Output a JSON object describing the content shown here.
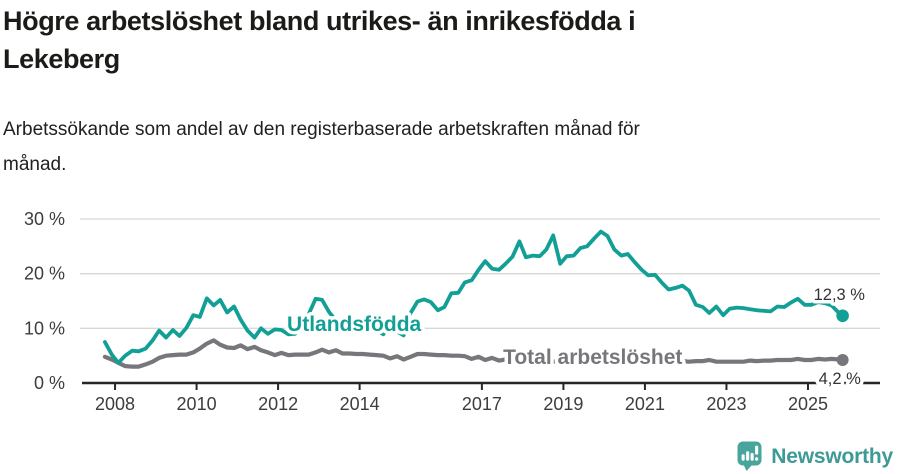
{
  "header": {
    "title_line1": "Högre arbetslöshet bland utrikes- än inrikesfödda i",
    "title_line2": "Lekeberg",
    "subtitle_line1": "Arbetssökande som andel av den registerbaserade arbetskraften månad för",
    "subtitle_line2": "månad."
  },
  "footer": {
    "brand": "Newsworthy",
    "logo_icon": "bar-chart-speech-bubble-icon"
  },
  "colors": {
    "foreign_born": "#12a096",
    "total": "#77777b",
    "axis": "#262626",
    "gridline": "#d8d8d8",
    "tick_label": "#3d3d3d",
    "value_label": "#333333",
    "logo_teal": "#4aa49e"
  },
  "chart_data": {
    "type": "line",
    "title": "Högre arbetslöshet bland utrikes- än inrikesfödda i Lekeberg",
    "subtitle": "Arbetssökande som andel av den registerbaserade arbetskraften månad för månad.",
    "unit": "percent of registered labour force",
    "grid": "horizontal-only",
    "legend_position": "inline-on-line",
    "xlim": [
      2007.14,
      2026.77
    ],
    "ylim": [
      0,
      32
    ],
    "x_tick_values": [
      2008,
      2010,
      2012,
      2014,
      2017,
      2019,
      2021,
      2023,
      2025
    ],
    "x_tick_labels": [
      "2008",
      "2010",
      "2012",
      "2014",
      "2017",
      "2019",
      "2021",
      "2023",
      "2025"
    ],
    "y_tick_values": [
      0,
      10,
      20,
      30
    ],
    "y_tick_labels": [
      "0 %",
      "10 %",
      "20 %",
      "30 %"
    ],
    "series": [
      {
        "name": "Utlandsfödda",
        "color": "#12a096",
        "line_width": 3.8,
        "end_value": 12.3,
        "end_label": "12,3 %",
        "label_anchor": {
          "x": 2012.22,
          "y": 9.5
        },
        "points": [
          [
            2007.75,
            7.5
          ],
          [
            2007.92,
            5.2
          ],
          [
            2008.08,
            3.7
          ],
          [
            2008.25,
            5.0
          ],
          [
            2008.42,
            5.9
          ],
          [
            2008.58,
            5.8
          ],
          [
            2008.75,
            6.3
          ],
          [
            2008.92,
            7.8
          ],
          [
            2009.08,
            9.6
          ],
          [
            2009.25,
            8.3
          ],
          [
            2009.42,
            9.7
          ],
          [
            2009.58,
            8.6
          ],
          [
            2009.75,
            10.1
          ],
          [
            2009.92,
            12.4
          ],
          [
            2010.08,
            12.1
          ],
          [
            2010.25,
            15.5
          ],
          [
            2010.42,
            14.2
          ],
          [
            2010.58,
            15.2
          ],
          [
            2010.75,
            12.9
          ],
          [
            2010.92,
            14.0
          ],
          [
            2011.08,
            11.6
          ],
          [
            2011.25,
            9.6
          ],
          [
            2011.42,
            8.3
          ],
          [
            2011.58,
            10.0
          ],
          [
            2011.75,
            9.0
          ],
          [
            2011.92,
            9.8
          ],
          [
            2012.08,
            9.7
          ],
          [
            2012.25,
            8.9
          ],
          [
            2012.42,
            9.0
          ],
          [
            2012.58,
            10.4
          ],
          [
            2012.75,
            12.6
          ],
          [
            2012.92,
            15.4
          ],
          [
            2013.08,
            15.2
          ],
          [
            2013.25,
            13.0
          ],
          [
            2013.42,
            11.4
          ],
          [
            2013.58,
            11.5
          ],
          [
            2013.75,
            11.3
          ],
          [
            2013.92,
            11.2
          ],
          [
            2014.08,
            11.2
          ],
          [
            2014.25,
            10.0
          ],
          [
            2014.42,
            9.7
          ],
          [
            2014.58,
            8.9
          ],
          [
            2014.75,
            10.8
          ],
          [
            2014.92,
            9.4
          ],
          [
            2015.08,
            8.7
          ],
          [
            2015.25,
            12.8
          ],
          [
            2015.42,
            14.9
          ],
          [
            2015.58,
            15.3
          ],
          [
            2015.75,
            14.8
          ],
          [
            2015.92,
            13.3
          ],
          [
            2016.08,
            13.9
          ],
          [
            2016.25,
            16.4
          ],
          [
            2016.42,
            16.5
          ],
          [
            2016.58,
            18.4
          ],
          [
            2016.75,
            18.8
          ],
          [
            2016.92,
            20.7
          ],
          [
            2017.08,
            22.3
          ],
          [
            2017.25,
            20.9
          ],
          [
            2017.42,
            20.7
          ],
          [
            2017.58,
            21.8
          ],
          [
            2017.75,
            23.1
          ],
          [
            2017.92,
            25.9
          ],
          [
            2018.08,
            23.0
          ],
          [
            2018.25,
            23.3
          ],
          [
            2018.42,
            23.2
          ],
          [
            2018.58,
            24.4
          ],
          [
            2018.75,
            27.0
          ],
          [
            2018.92,
            21.8
          ],
          [
            2019.08,
            23.2
          ],
          [
            2019.25,
            23.3
          ],
          [
            2019.42,
            24.7
          ],
          [
            2019.58,
            25.0
          ],
          [
            2019.75,
            26.4
          ],
          [
            2019.92,
            27.7
          ],
          [
            2020.08,
            26.9
          ],
          [
            2020.25,
            24.4
          ],
          [
            2020.42,
            23.3
          ],
          [
            2020.58,
            23.6
          ],
          [
            2020.75,
            22.1
          ],
          [
            2020.92,
            20.7
          ],
          [
            2021.08,
            19.7
          ],
          [
            2021.25,
            19.8
          ],
          [
            2021.42,
            18.3
          ],
          [
            2021.58,
            17.1
          ],
          [
            2021.75,
            17.4
          ],
          [
            2021.92,
            17.8
          ],
          [
            2022.08,
            16.9
          ],
          [
            2022.25,
            14.3
          ],
          [
            2022.42,
            13.9
          ],
          [
            2022.58,
            12.8
          ],
          [
            2022.75,
            14.0
          ],
          [
            2022.92,
            12.4
          ],
          [
            2023.08,
            13.6
          ],
          [
            2023.25,
            13.8
          ],
          [
            2023.42,
            13.7
          ],
          [
            2023.58,
            13.5
          ],
          [
            2023.75,
            13.3
          ],
          [
            2023.92,
            13.2
          ],
          [
            2024.08,
            13.1
          ],
          [
            2024.25,
            14.0
          ],
          [
            2024.42,
            13.9
          ],
          [
            2024.58,
            14.7
          ],
          [
            2024.75,
            15.4
          ],
          [
            2024.92,
            14.3
          ],
          [
            2025.08,
            14.3
          ],
          [
            2025.25,
            14.8
          ],
          [
            2025.42,
            14.6
          ],
          [
            2025.58,
            14.2
          ],
          [
            2025.75,
            12.9
          ],
          [
            2025.85,
            12.3
          ]
        ]
      },
      {
        "name": "Total arbetslöshet",
        "color": "#77777b",
        "line_width": 4.2,
        "end_value": 4.2,
        "end_label": "4,2 %",
        "label_anchor": {
          "x": 2017.52,
          "y": 3.48
        },
        "points": [
          [
            2007.75,
            4.8
          ],
          [
            2007.92,
            4.3
          ],
          [
            2008.08,
            3.7
          ],
          [
            2008.25,
            3.1
          ],
          [
            2008.42,
            3.0
          ],
          [
            2008.58,
            3.0
          ],
          [
            2008.75,
            3.4
          ],
          [
            2008.92,
            3.9
          ],
          [
            2009.08,
            4.6
          ],
          [
            2009.25,
            5.0
          ],
          [
            2009.42,
            5.1
          ],
          [
            2009.58,
            5.2
          ],
          [
            2009.75,
            5.2
          ],
          [
            2009.92,
            5.6
          ],
          [
            2010.08,
            6.3
          ],
          [
            2010.25,
            7.2
          ],
          [
            2010.42,
            7.8
          ],
          [
            2010.58,
            7.0
          ],
          [
            2010.75,
            6.5
          ],
          [
            2010.92,
            6.4
          ],
          [
            2011.08,
            6.9
          ],
          [
            2011.25,
            6.2
          ],
          [
            2011.42,
            6.6
          ],
          [
            2011.58,
            6.0
          ],
          [
            2011.75,
            5.6
          ],
          [
            2011.92,
            5.1
          ],
          [
            2012.08,
            5.5
          ],
          [
            2012.25,
            5.1
          ],
          [
            2012.42,
            5.2
          ],
          [
            2012.58,
            5.2
          ],
          [
            2012.75,
            5.2
          ],
          [
            2012.92,
            5.6
          ],
          [
            2013.08,
            6.1
          ],
          [
            2013.25,
            5.6
          ],
          [
            2013.42,
            6.0
          ],
          [
            2013.58,
            5.4
          ],
          [
            2013.75,
            5.4
          ],
          [
            2013.92,
            5.3
          ],
          [
            2014.08,
            5.3
          ],
          [
            2014.25,
            5.2
          ],
          [
            2014.42,
            5.1
          ],
          [
            2014.58,
            5.0
          ],
          [
            2014.75,
            4.5
          ],
          [
            2014.92,
            4.9
          ],
          [
            2015.08,
            4.3
          ],
          [
            2015.25,
            4.8
          ],
          [
            2015.42,
            5.3
          ],
          [
            2015.58,
            5.3
          ],
          [
            2015.75,
            5.2
          ],
          [
            2015.92,
            5.1
          ],
          [
            2016.08,
            5.1
          ],
          [
            2016.25,
            5.0
          ],
          [
            2016.42,
            5.0
          ],
          [
            2016.58,
            4.9
          ],
          [
            2016.75,
            4.4
          ],
          [
            2016.92,
            4.8
          ],
          [
            2017.08,
            4.2
          ],
          [
            2017.25,
            4.6
          ],
          [
            2017.42,
            4.1
          ],
          [
            2017.58,
            4.3
          ],
          [
            2017.75,
            4.1
          ],
          [
            2017.92,
            4.4
          ],
          [
            2018.08,
            4.2
          ],
          [
            2018.25,
            4.0
          ],
          [
            2018.42,
            4.2
          ],
          [
            2018.58,
            4.0
          ],
          [
            2018.75,
            3.9
          ],
          [
            2018.92,
            4.1
          ],
          [
            2019.08,
            4.0
          ],
          [
            2019.25,
            4.2
          ],
          [
            2019.42,
            4.0
          ],
          [
            2019.58,
            3.9
          ],
          [
            2019.75,
            4.0
          ],
          [
            2019.92,
            4.2
          ],
          [
            2020.08,
            4.5
          ],
          [
            2020.25,
            4.7
          ],
          [
            2020.42,
            4.6
          ],
          [
            2020.58,
            4.5
          ],
          [
            2020.75,
            4.4
          ],
          [
            2020.92,
            4.3
          ],
          [
            2021.08,
            4.4
          ],
          [
            2021.25,
            4.2
          ],
          [
            2021.42,
            4.1
          ],
          [
            2021.58,
            4.0
          ],
          [
            2021.75,
            4.1
          ],
          [
            2021.92,
            4.0
          ],
          [
            2022.08,
            3.9
          ],
          [
            2022.25,
            4.0
          ],
          [
            2022.42,
            4.0
          ],
          [
            2022.58,
            4.2
          ],
          [
            2022.75,
            3.9
          ],
          [
            2022.92,
            3.9
          ],
          [
            2023.08,
            3.9
          ],
          [
            2023.25,
            3.9
          ],
          [
            2023.42,
            3.9
          ],
          [
            2023.58,
            4.1
          ],
          [
            2023.75,
            4.0
          ],
          [
            2023.92,
            4.1
          ],
          [
            2024.08,
            4.1
          ],
          [
            2024.25,
            4.2
          ],
          [
            2024.42,
            4.2
          ],
          [
            2024.58,
            4.2
          ],
          [
            2024.75,
            4.4
          ],
          [
            2024.92,
            4.2
          ],
          [
            2025.08,
            4.2
          ],
          [
            2025.25,
            4.4
          ],
          [
            2025.42,
            4.3
          ],
          [
            2025.58,
            4.4
          ],
          [
            2025.75,
            4.3
          ],
          [
            2025.85,
            4.2
          ]
        ]
      }
    ]
  }
}
